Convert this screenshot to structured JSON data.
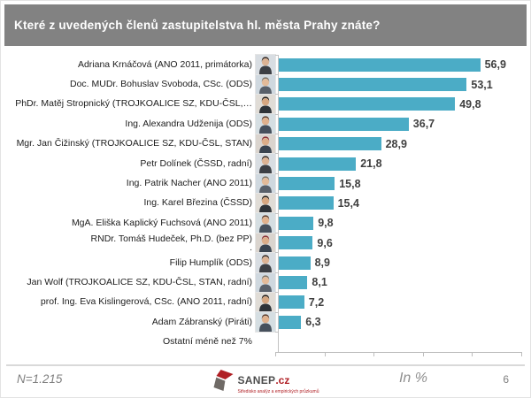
{
  "title": "Které z uvedených členů zastupitelstva hl. města Prahy znáte?",
  "chart_data": {
    "type": "bar",
    "orientation": "horizontal",
    "title": "Které z uvedených členů zastupitelstva hl. města Prahy znáte?",
    "unit": "%",
    "bar_color": "#4BACC6",
    "xlim": [
      0,
      70
    ],
    "x_axis_tick_labels_visible": false,
    "rows": [
      {
        "category": "Adriana Krnáčová (ANO 2011, primátorka)",
        "value": 56.9,
        "label": "56,9",
        "photo": true
      },
      {
        "category": "Doc. MUDr. Bohuslav Svoboda, CSc. (ODS)",
        "value": 53.1,
        "label": "53,1",
        "photo": true
      },
      {
        "category": "PhDr. Matěj Stropnický (TROJKOALICE SZ, KDU-ČSL,…",
        "value": 49.8,
        "label": "49,8",
        "photo": true
      },
      {
        "category": "Ing. Alexandra Udženija (ODS)",
        "value": 36.7,
        "label": "36,7",
        "photo": true
      },
      {
        "category": "Mgr. Jan Čižinský (TROJKOALICE SZ, KDU-ČSL, STAN)",
        "value": 28.9,
        "label": "28,9",
        "photo": true
      },
      {
        "category": "Petr Dolínek (ČSSD, radní)",
        "value": 21.8,
        "label": "21,8",
        "photo": true
      },
      {
        "category": "Ing. Patrik Nacher (ANO 2011)",
        "value": 15.8,
        "label": "15,8",
        "photo": true
      },
      {
        "category": "Ing. Karel Březina (ČSSD)",
        "value": 15.4,
        "label": "15,4",
        "photo": true
      },
      {
        "category": "MgA. Eliška Kaplický Fuchsová (ANO 2011)",
        "value": 9.8,
        "label": "9,8",
        "photo": true
      },
      {
        "category": "RNDr. Tomáš Hudeček, Ph.D. (bez PP)",
        "sub": ".",
        "value": 9.6,
        "label": "9,6",
        "photo": true
      },
      {
        "category": "Filip Humplík (ODS)",
        "value": 8.9,
        "label": "8,9",
        "photo": true
      },
      {
        "category": "Jan Wolf (TROJKOALICE SZ, KDU-ČSL, STAN, radní)",
        "value": 8.1,
        "label": "8,1",
        "photo": true
      },
      {
        "category": "prof. Ing. Eva Kislingerová, CSc. (ANO 2011, radní)",
        "value": 7.2,
        "label": "7,2",
        "photo": true
      },
      {
        "category": "Adam Zábranský (Piráti)",
        "value": 6.3,
        "label": "6,3",
        "photo": true
      },
      {
        "category": "Ostatní méně než 7%",
        "value": null,
        "label": "",
        "photo": false
      }
    ]
  },
  "footer": {
    "n_label": "N=1.215",
    "logo_text_main": "SANEP",
    "logo_text_suffix": ".cz",
    "logo_tagline": "Středisko analýz a empirických průzkumů",
    "unit_label": "In %",
    "page_number": "6"
  }
}
